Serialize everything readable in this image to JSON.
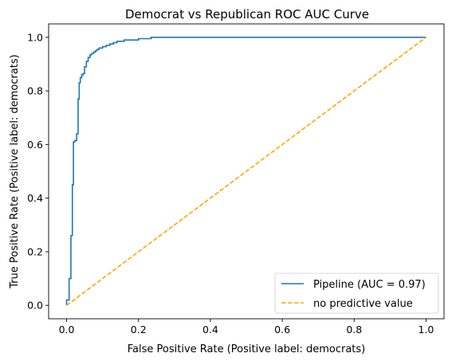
{
  "chart_data": {
    "type": "line",
    "title": "Democrat vs Republican ROC AUC Curve",
    "xlabel": "False Positive Rate (Positive label: democrats)",
    "ylabel": "True Positive Rate (Positive label: democrats)",
    "xlim": [
      -0.05,
      1.05
    ],
    "ylim": [
      -0.05,
      1.05
    ],
    "xticks": [
      "0.0",
      "0.2",
      "0.4",
      "0.6",
      "0.8",
      "1.0"
    ],
    "yticks": [
      "0.0",
      "0.2",
      "0.4",
      "0.6",
      "0.8",
      "1.0"
    ],
    "grid": false,
    "legend_position": "lower-right",
    "series": [
      {
        "name": "Pipeline (AUC = 0.97)",
        "style": "steps",
        "color": "#1f77b4",
        "x": [
          0.0,
          0.0,
          0.007,
          0.007,
          0.012,
          0.012,
          0.016,
          0.016,
          0.019,
          0.019,
          0.023,
          0.023,
          0.028,
          0.028,
          0.032,
          0.032,
          0.035,
          0.035,
          0.038,
          0.038,
          0.042,
          0.042,
          0.046,
          0.046,
          0.05,
          0.05,
          0.055,
          0.055,
          0.06,
          0.06,
          0.065,
          0.065,
          0.07,
          0.07,
          0.075,
          0.075,
          0.08,
          0.08,
          0.085,
          0.085,
          0.09,
          0.09,
          0.1,
          0.1,
          0.11,
          0.11,
          0.12,
          0.12,
          0.13,
          0.13,
          0.14,
          0.14,
          0.16,
          0.16,
          0.2,
          0.2,
          0.235,
          0.235,
          1.0
        ],
        "y": [
          0.0,
          0.02,
          0.02,
          0.1,
          0.1,
          0.26,
          0.26,
          0.45,
          0.45,
          0.61,
          0.61,
          0.615,
          0.615,
          0.64,
          0.64,
          0.77,
          0.77,
          0.83,
          0.83,
          0.85,
          0.85,
          0.86,
          0.86,
          0.865,
          0.865,
          0.89,
          0.89,
          0.91,
          0.91,
          0.925,
          0.925,
          0.935,
          0.935,
          0.94,
          0.94,
          0.945,
          0.945,
          0.95,
          0.95,
          0.955,
          0.955,
          0.96,
          0.96,
          0.965,
          0.965,
          0.97,
          0.97,
          0.975,
          0.975,
          0.98,
          0.98,
          0.985,
          0.985,
          0.99,
          0.99,
          0.995,
          0.995,
          1.0,
          1.0
        ]
      },
      {
        "name": "no predictive value",
        "style": "dashed",
        "color": "#ffa500",
        "x": [
          0.0,
          1.0
        ],
        "y": [
          0.0,
          1.0
        ]
      }
    ]
  }
}
